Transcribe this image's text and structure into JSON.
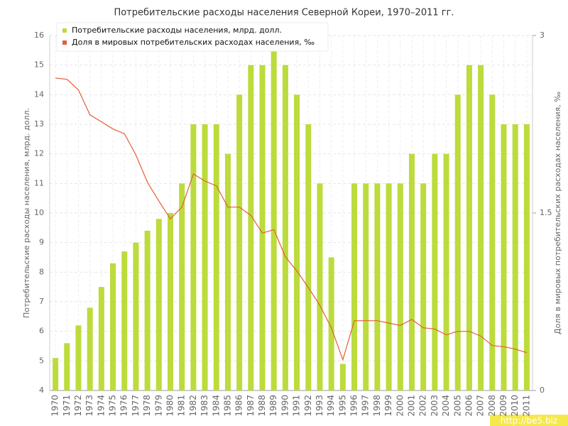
{
  "chart_data": {
    "type": "bar",
    "title": "Потребительские расходы населения Северной Кореи, 1970–2011 гг.",
    "y_label": "Потребительские расходы населения, млрд. долл.",
    "y2_label": "Доля в мировых потребительских расходах населения, ‰",
    "watermark": "http://be5.biz",
    "categories": [
      "1970",
      "1971",
      "1972",
      "1973",
      "1974",
      "1975",
      "1976",
      "1977",
      "1978",
      "1979",
      "1980",
      "1981",
      "1982",
      "1983",
      "1984",
      "1985",
      "1986",
      "1987",
      "1988",
      "1989",
      "1990",
      "1991",
      "1992",
      "1993",
      "1994",
      "1995",
      "1996",
      "1997",
      "1998",
      "1999",
      "2000",
      "2001",
      "2002",
      "2003",
      "2004",
      "2005",
      "2006",
      "2007",
      "2008",
      "2009",
      "2010",
      "2011"
    ],
    "series": [
      {
        "name": "Потребительские расходы населения, млрд. долл.",
        "type": "bar",
        "color": "#bcdb3c",
        "values": [
          5.1,
          5.6,
          6.2,
          6.8,
          7.5,
          8.3,
          8.7,
          9.0,
          9.4,
          9.8,
          10.0,
          11,
          13,
          13,
          13,
          12,
          14,
          15,
          15,
          15.5,
          15,
          14,
          13,
          11,
          8.5,
          4.9,
          11,
          11,
          11,
          11,
          11,
          12,
          11,
          12,
          12,
          14,
          15,
          15,
          14,
          13,
          13,
          13
        ]
      },
      {
        "name": "Доля в мировых потребительских расходах населения, ‰",
        "type": "line",
        "color": "#e0603a",
        "axis": "y2",
        "values": [
          2.64,
          2.63,
          2.54,
          2.33,
          2.27,
          2.21,
          2.17,
          1.99,
          1.76,
          1.6,
          1.45,
          1.55,
          1.83,
          1.77,
          1.73,
          1.55,
          1.55,
          1.48,
          1.33,
          1.36,
          1.13,
          1.01,
          0.87,
          0.72,
          0.53,
          0.26,
          0.59,
          0.59,
          0.59,
          0.57,
          0.55,
          0.6,
          0.53,
          0.52,
          0.47,
          0.5,
          0.5,
          0.46,
          0.38,
          0.37,
          0.35,
          0.32
        ]
      }
    ],
    "ylim": [
      4,
      16
    ],
    "yticks": [
      4,
      5,
      6,
      7,
      8,
      9,
      10,
      11,
      12,
      13,
      14,
      15,
      16
    ],
    "y2lim": [
      0,
      3
    ],
    "y2ticks": [
      0,
      1.5,
      3
    ],
    "grid": true
  }
}
